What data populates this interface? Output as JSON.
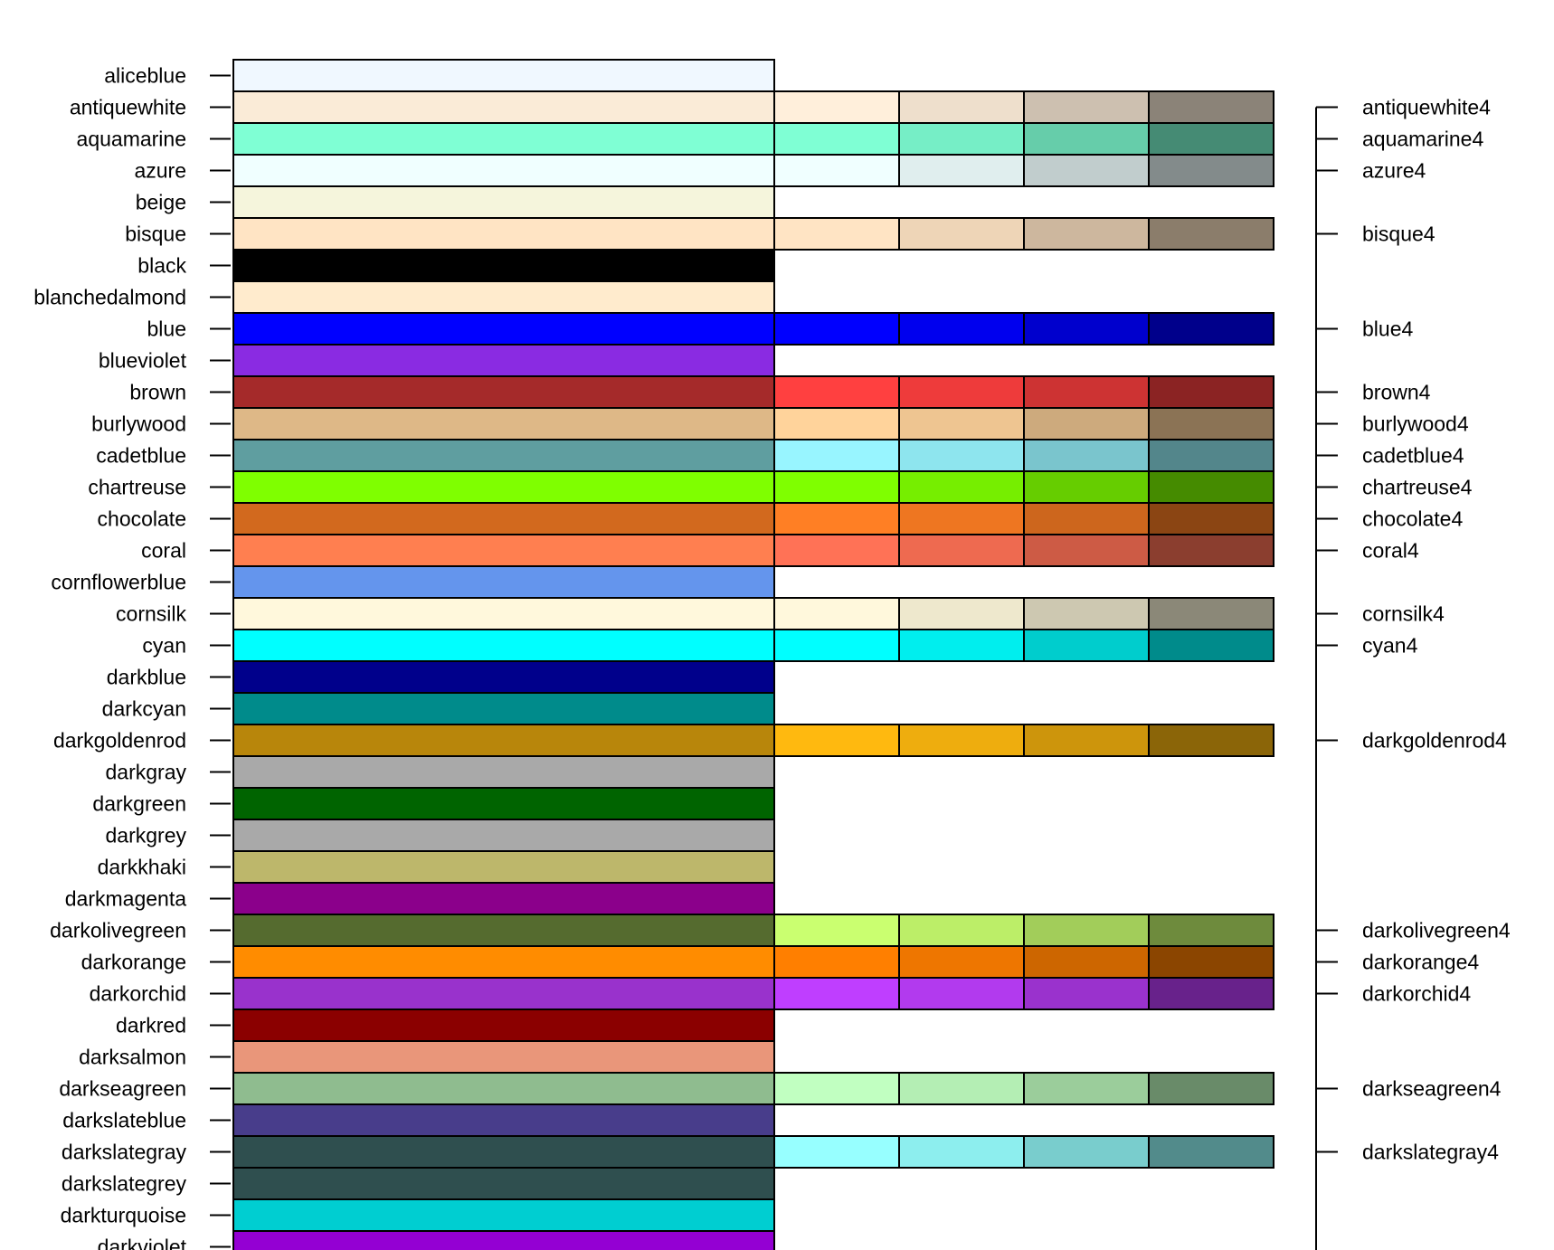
{
  "chart_data": {
    "type": "table",
    "title": "",
    "xlabel": "",
    "ylabel": "",
    "rows": [
      {
        "name": "aliceblue",
        "base": "#F0F8FF"
      },
      {
        "name": "antiquewhite",
        "base": "#FAEBD7",
        "variants": [
          "#FFEFDB",
          "#EEDFCC",
          "#CDC0B0",
          "#8B8378"
        ],
        "right_label": "antiquewhite4"
      },
      {
        "name": "aquamarine",
        "base": "#7FFFD4",
        "variants": [
          "#7FFFD4",
          "#76EEC6",
          "#66CDAA",
          "#458B74"
        ],
        "right_label": "aquamarine4"
      },
      {
        "name": "azure",
        "base": "#F0FFFF",
        "variants": [
          "#F0FFFF",
          "#E0EEEE",
          "#C1CDCD",
          "#838B8B"
        ],
        "right_label": "azure4"
      },
      {
        "name": "beige",
        "base": "#F5F5DC"
      },
      {
        "name": "bisque",
        "base": "#FFE4C4",
        "variants": [
          "#FFE4C4",
          "#EED5B7",
          "#CDB79E",
          "#8B7D6B"
        ],
        "right_label": "bisque4"
      },
      {
        "name": "black",
        "base": "#000000"
      },
      {
        "name": "blanchedalmond",
        "base": "#FFEBCD"
      },
      {
        "name": "blue",
        "base": "#0000FF",
        "variants": [
          "#0000FF",
          "#0000EE",
          "#0000CD",
          "#00008B"
        ],
        "right_label": "blue4"
      },
      {
        "name": "blueviolet",
        "base": "#8A2BE2"
      },
      {
        "name": "brown",
        "base": "#A52A2A",
        "variants": [
          "#FF4040",
          "#EE3B3B",
          "#CD3333",
          "#8B2323"
        ],
        "right_label": "brown4"
      },
      {
        "name": "burlywood",
        "base": "#DEB887",
        "variants": [
          "#FFD39B",
          "#EEC591",
          "#CDAA7D",
          "#8B7355"
        ],
        "right_label": "burlywood4"
      },
      {
        "name": "cadetblue",
        "base": "#5F9EA0",
        "variants": [
          "#98F5FF",
          "#8EE5EE",
          "#7AC5CD",
          "#53868B"
        ],
        "right_label": "cadetblue4"
      },
      {
        "name": "chartreuse",
        "base": "#7FFF00",
        "variants": [
          "#7FFF00",
          "#76EE00",
          "#66CD00",
          "#458B00"
        ],
        "right_label": "chartreuse4"
      },
      {
        "name": "chocolate",
        "base": "#D2691E",
        "variants": [
          "#FF7F24",
          "#EE7621",
          "#CD661D",
          "#8B4513"
        ],
        "right_label": "chocolate4"
      },
      {
        "name": "coral",
        "base": "#FF7F50",
        "variants": [
          "#FF7256",
          "#EE6A50",
          "#CD5B45",
          "#8B3E2F"
        ],
        "right_label": "coral4"
      },
      {
        "name": "cornflowerblue",
        "base": "#6495ED"
      },
      {
        "name": "cornsilk",
        "base": "#FFF8DC",
        "variants": [
          "#FFF8DC",
          "#EEE8CD",
          "#CDC8B1",
          "#8B8878"
        ],
        "right_label": "cornsilk4"
      },
      {
        "name": "cyan",
        "base": "#00FFFF",
        "variants": [
          "#00FFFF",
          "#00EEEE",
          "#00CDCD",
          "#008B8B"
        ],
        "right_label": "cyan4"
      },
      {
        "name": "darkblue",
        "base": "#00008B"
      },
      {
        "name": "darkcyan",
        "base": "#008B8B"
      },
      {
        "name": "darkgoldenrod",
        "base": "#B8860B",
        "variants": [
          "#FFB90F",
          "#EEAD0E",
          "#CD950C",
          "#8B6508"
        ],
        "right_label": "darkgoldenrod4"
      },
      {
        "name": "darkgray",
        "base": "#A9A9A9"
      },
      {
        "name": "darkgreen",
        "base": "#006400"
      },
      {
        "name": "darkgrey",
        "base": "#A9A9A9"
      },
      {
        "name": "darkkhaki",
        "base": "#BDB76B"
      },
      {
        "name": "darkmagenta",
        "base": "#8B008B"
      },
      {
        "name": "darkolivegreen",
        "base": "#556B2F",
        "variants": [
          "#CAFF70",
          "#BCEE68",
          "#A2CD5A",
          "#6E8B3D"
        ],
        "right_label": "darkolivegreen4"
      },
      {
        "name": "darkorange",
        "base": "#FF8C00",
        "variants": [
          "#FF7F00",
          "#EE7600",
          "#CD6600",
          "#8B4500"
        ],
        "right_label": "darkorange4"
      },
      {
        "name": "darkorchid",
        "base": "#9932CC",
        "variants": [
          "#BF3EFF",
          "#B23AEE",
          "#9A32CD",
          "#68228B"
        ],
        "right_label": "darkorchid4"
      },
      {
        "name": "darkred",
        "base": "#8B0000"
      },
      {
        "name": "darksalmon",
        "base": "#E9967A"
      },
      {
        "name": "darkseagreen",
        "base": "#8FBC8F",
        "variants": [
          "#C1FFC1",
          "#B4EEB4",
          "#9BCD9B",
          "#698B69"
        ],
        "right_label": "darkseagreen4"
      },
      {
        "name": "darkslateblue",
        "base": "#483D8B"
      },
      {
        "name": "darkslategray",
        "base": "#2F4F4F",
        "variants": [
          "#97FFFF",
          "#8DEEEE",
          "#79CDCD",
          "#528B8B"
        ],
        "right_label": "darkslategray4"
      },
      {
        "name": "darkslategrey",
        "base": "#2F4F4F"
      },
      {
        "name": "darkturquoise",
        "base": "#00CED1"
      },
      {
        "name": "darkviolet",
        "base": "#9400D3"
      }
    ]
  }
}
